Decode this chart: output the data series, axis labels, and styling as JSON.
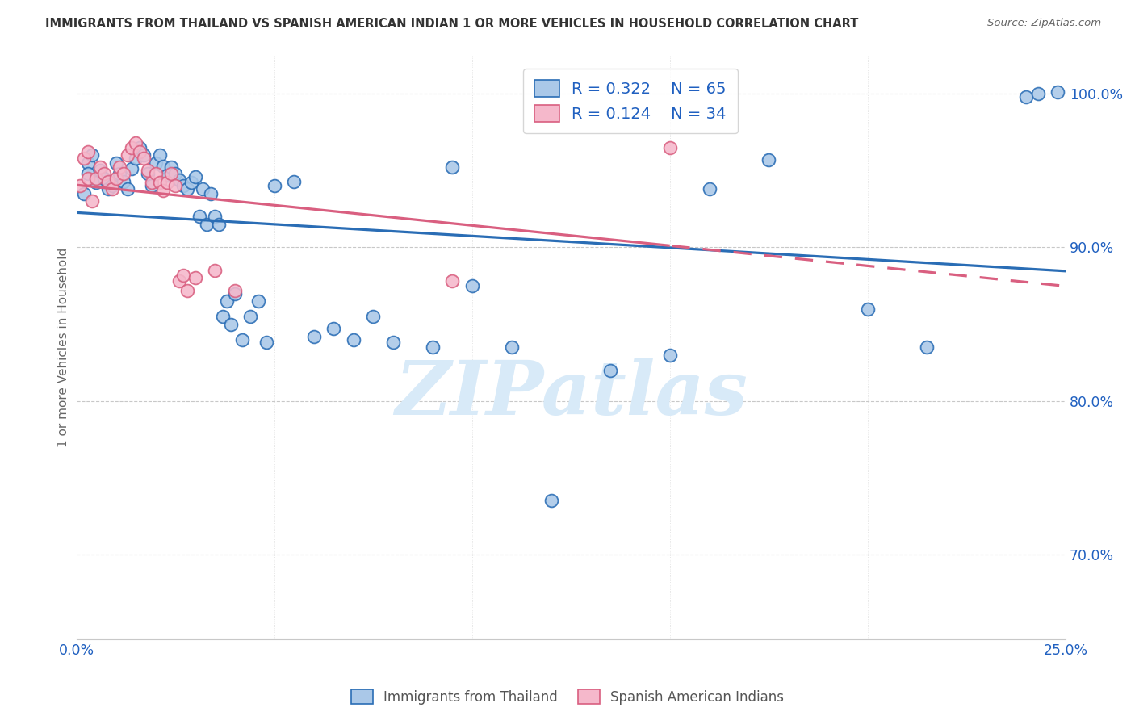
{
  "title": "IMMIGRANTS FROM THAILAND VS SPANISH AMERICAN INDIAN 1 OR MORE VEHICLES IN HOUSEHOLD CORRELATION CHART",
  "source": "Source: ZipAtlas.com",
  "ylabel": "1 or more Vehicles in Household",
  "legend_label1": "Immigrants from Thailand",
  "legend_label2": "Spanish American Indians",
  "R1": 0.322,
  "N1": 65,
  "R2": 0.124,
  "N2": 34,
  "color_blue": "#aac8e8",
  "color_pink": "#f5b8cb",
  "line_blue": "#2a6db5",
  "line_pink": "#d95f80",
  "watermark": "ZIPatlas",
  "watermark_color": "#d8eaf8",
  "background": "#ffffff",
  "grid_color": "#c8c8c8",
  "title_color": "#333333",
  "axis_label_color": "#2060c0",
  "yticks": [
    70.0,
    80.0,
    90.0,
    100.0
  ],
  "ytick_labels": [
    "70.0%",
    "80.0%",
    "90.0%",
    "100.0%"
  ],
  "xmin": 0.0,
  "xmax": 0.25,
  "ymin": 0.645,
  "ymax": 1.025
}
